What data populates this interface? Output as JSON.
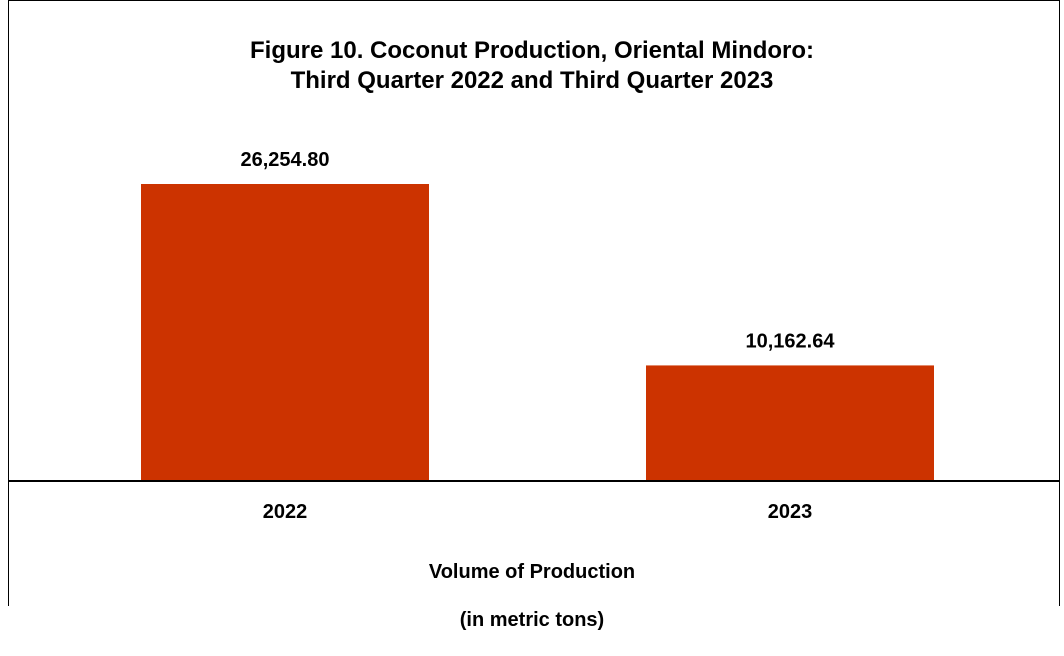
{
  "chart_data": {
    "type": "bar",
    "title_line1": "Figure 10. Coconut Production, Oriental Mindoro:",
    "title_line2": "Third Quarter 2022 and Third Quarter 2023",
    "categories": [
      "2022",
      "2023"
    ],
    "values": [
      26254.8,
      10162.64
    ],
    "value_labels": [
      "26,254.80",
      "10,162.64"
    ],
    "xlabel_line1": "Volume of Production",
    "xlabel_line2": "(in metric tons)",
    "ylabel": "",
    "ylim": [
      0,
      30000
    ],
    "grid": false,
    "legend": "none",
    "bar_color": "#CC3300"
  }
}
